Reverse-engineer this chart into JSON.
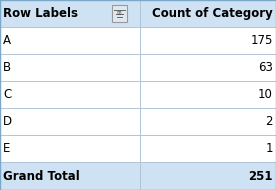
{
  "header_labels": [
    "Row Labels",
    "Count of Category"
  ],
  "rows": [
    [
      "A",
      "175"
    ],
    [
      "B",
      "63"
    ],
    [
      "C",
      "10"
    ],
    [
      "D",
      "2"
    ],
    [
      "E",
      "1"
    ]
  ],
  "footer_label": "Grand Total",
  "footer_value": "251",
  "header_bg": "#cfe2f3",
  "row_bg": "#ffffff",
  "footer_bg": "#cfe2f3",
  "border_color": "#b0c4d8",
  "outer_border_color": "#7ba7c9",
  "header_text_color": "#000000",
  "row_text_color": "#000000",
  "footer_text_color": "#000000",
  "header_font_size": 8.5,
  "row_font_size": 8.5,
  "footer_font_size": 8.5,
  "fig_width": 2.76,
  "fig_height": 1.9,
  "dpi": 100
}
